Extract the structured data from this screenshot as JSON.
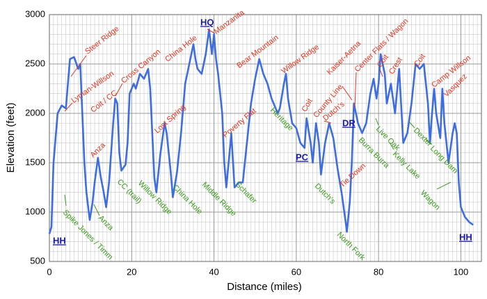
{
  "chart_data": {
    "type": "line",
    "xlabel": "Distance (miles)",
    "ylabel": "Elevation (feet)",
    "xlim": [
      0,
      105
    ],
    "ylim": [
      500,
      3000
    ],
    "xticks": [
      0,
      20,
      40,
      60,
      80,
      100
    ],
    "yticks": [
      500,
      1000,
      1500,
      2000,
      2500,
      3000
    ],
    "grid": true,
    "series": [
      {
        "color": "#3d6de0",
        "x": [
          0,
          0.5,
          1,
          2,
          3,
          4,
          5,
          6,
          7,
          7.5,
          8.5,
          9,
          9.8,
          10.5,
          11,
          11.8,
          12.5,
          13.2,
          13.8,
          14.5,
          15.5,
          16,
          16.5,
          17,
          17.5,
          18.5,
          19,
          19.5,
          20.5,
          21,
          22,
          23,
          24,
          24.5,
          25,
          25.5,
          26,
          27,
          28,
          28.5,
          29.5,
          30,
          31,
          32,
          33,
          34,
          35,
          35.5,
          36,
          37,
          38,
          38.8,
          39.5,
          40,
          40.5,
          41,
          42,
          42.5,
          43,
          44,
          44.2,
          45,
          46,
          47,
          48,
          49,
          50,
          51,
          52,
          53,
          54,
          55.5,
          56,
          57,
          57.5,
          58,
          59,
          60,
          61,
          62,
          62.5,
          63.5,
          64,
          64.8,
          65.5,
          66,
          67,
          68,
          69,
          70,
          71,
          72,
          72.3,
          73,
          73.5,
          74,
          75,
          76,
          77,
          78,
          78.8,
          79.5,
          80,
          80.5,
          81.5,
          82,
          83,
          84,
          85,
          86,
          87,
          88,
          89,
          90,
          91,
          92,
          92.5,
          93,
          93.5,
          94,
          95,
          95.5,
          96,
          97,
          98,
          98.5,
          99,
          99.5,
          100,
          101,
          102,
          103
        ],
        "values": [
          780,
          850,
          1500,
          2000,
          2080,
          2050,
          2550,
          2570,
          2450,
          2500,
          1500,
          1200,
          920,
          1100,
          1300,
          1550,
          1350,
          1200,
          1050,
          1300,
          1900,
          2150,
          2100,
          1600,
          1420,
          1480,
          1700,
          2200,
          2300,
          2250,
          2400,
          2350,
          2450,
          2250,
          1800,
          1350,
          1200,
          1600,
          1900,
          1800,
          1400,
          1150,
          1400,
          1800,
          2300,
          2500,
          2700,
          2550,
          2450,
          2400,
          2600,
          2850,
          2600,
          2800,
          2550,
          2400,
          2000,
          1500,
          1250,
          1700,
          1800,
          1250,
          1300,
          1300,
          1700,
          2100,
          2350,
          2550,
          2400,
          2300,
          2150,
          2000,
          2050,
          2300,
          2400,
          2150,
          1900,
          1850,
          1700,
          1650,
          1950,
          1700,
          1500,
          1900,
          1700,
          1380,
          1700,
          1900,
          1750,
          1450,
          1200,
          900,
          800,
          1100,
          1500,
          2100,
          1900,
          1800,
          1900,
          2200,
          2350,
          2150,
          2300,
          2600,
          2400,
          2100,
          2300,
          2000,
          2450,
          1700,
          1800,
          2100,
          2500,
          2450,
          2500,
          2100,
          1700,
          2000,
          2250,
          2000,
          1750,
          2250,
          1900,
          1500,
          1800,
          1900,
          1800,
          1300,
          1050,
          950,
          900,
          870
        ]
      }
    ],
    "annotations": [
      {
        "text": "Steer Ridge",
        "color": "#e8331e"
      },
      {
        "text": "Lyman-Willson",
        "color": "#e8331e"
      },
      {
        "text": "Coit / CC",
        "color": "#e8331e"
      },
      {
        "text": "Cross Canyon",
        "color": "#e8331e"
      },
      {
        "text": "Anza",
        "color": "#e8331e"
      },
      {
        "text": "China Hole",
        "color": "#e8331e"
      },
      {
        "text": "Manzanita",
        "color": "#e8331e"
      },
      {
        "text": "Lost Spring",
        "color": "#e8331e"
      },
      {
        "text": "Bear Mountain",
        "color": "#e8331e"
      },
      {
        "text": "Poverty Flat",
        "color": "#e8331e"
      },
      {
        "text": "Willow Ridge",
        "color": "#e8331e"
      },
      {
        "text": "Coit",
        "color": "#e8331e"
      },
      {
        "text": "County Line",
        "color": "#e8331e"
      },
      {
        "text": "Dutch's",
        "color": "#e8331e"
      },
      {
        "text": "Kaiser-Aetna",
        "color": "#e8331e"
      },
      {
        "text": "Center Flats / Wagon",
        "color": "#e8331e"
      },
      {
        "text": "Coit",
        "color": "#e8331e"
      },
      {
        "text": "Crest",
        "color": "#e8331e"
      },
      {
        "text": "Coit",
        "color": "#e8331e"
      },
      {
        "text": "Camp Willson",
        "color": "#e8331e"
      },
      {
        "text": "Vasquez",
        "color": "#e8331e"
      },
      {
        "text": "Tie Down",
        "color": "#e8331e"
      },
      {
        "text": "Spike Jones / Timm",
        "color": "#3a9a1a"
      },
      {
        "text": "Anza",
        "color": "#3a9a1a"
      },
      {
        "text": "CC  (trail)",
        "color": "#3a9a1a"
      },
      {
        "text": "Willow Ridge",
        "color": "#3a9a1a"
      },
      {
        "text": "China Hole",
        "color": "#3a9a1a"
      },
      {
        "text": "Middle Ridge",
        "color": "#3a9a1a"
      },
      {
        "text": "Schafer",
        "color": "#3a9a1a"
      },
      {
        "text": "Heritage",
        "color": "#3a9a1a"
      },
      {
        "text": "Dutch's",
        "color": "#3a9a1a"
      },
      {
        "text": "North Fork",
        "color": "#3a9a1a"
      },
      {
        "text": "Burra Burra",
        "color": "#3a9a1a"
      },
      {
        "text": "Live Oak",
        "color": "#3a9a1a"
      },
      {
        "text": "Kelly Lake",
        "color": "#3a9a1a"
      },
      {
        "text": "Dexter",
        "color": "#3a9a1a"
      },
      {
        "text": "Long Dam",
        "color": "#3a9a1a"
      },
      {
        "text": "Wagon",
        "color": "#3a9a1a"
      },
      {
        "text": "HH",
        "color": "#1a1aa8"
      },
      {
        "text": "HQ",
        "color": "#1a1aa8"
      },
      {
        "text": "PC",
        "color": "#1a1aa8"
      },
      {
        "text": "DR",
        "color": "#1a1aa8"
      },
      {
        "text": "HH",
        "color": "#1a1aa8"
      }
    ]
  }
}
